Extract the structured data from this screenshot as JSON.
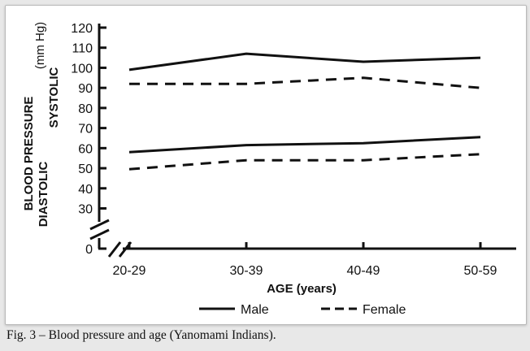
{
  "caption": "Fig. 3 – Blood pressure and age (Yanomami Indians).",
  "chart_data": {
    "type": "line",
    "title": "",
    "xlabel": "AGE (years)",
    "ylabel_outer": "BLOOD PRESSURE",
    "ylabel_unit": "(mm Hg)",
    "ylabel_systolic": "SYSTOLIC",
    "ylabel_diastolic": "DIASTOLIC",
    "categories": [
      "20-29",
      "30-39",
      "40-49",
      "50-59"
    ],
    "yticks": [
      0,
      30,
      40,
      50,
      60,
      70,
      80,
      90,
      100,
      110,
      120
    ],
    "ylim": [
      0,
      120
    ],
    "axis_break": true,
    "grid": false,
    "legend_position": "bottom",
    "series": [
      {
        "name": "Male",
        "group": "Systolic",
        "style": "solid",
        "values": [
          99,
          107,
          103,
          105
        ]
      },
      {
        "name": "Female",
        "group": "Systolic",
        "style": "dashed",
        "values": [
          92,
          92,
          95,
          90
        ]
      },
      {
        "name": "Male",
        "group": "Diastolic",
        "style": "solid",
        "values": [
          58,
          61.5,
          62.5,
          65.5
        ]
      },
      {
        "name": "Female",
        "group": "Diastolic",
        "style": "dashed",
        "values": [
          49.5,
          54,
          54,
          57
        ]
      }
    ],
    "legend": [
      {
        "label": "Male",
        "style": "solid"
      },
      {
        "label": "Female",
        "style": "dashed"
      }
    ],
    "line_color": "#111111"
  }
}
